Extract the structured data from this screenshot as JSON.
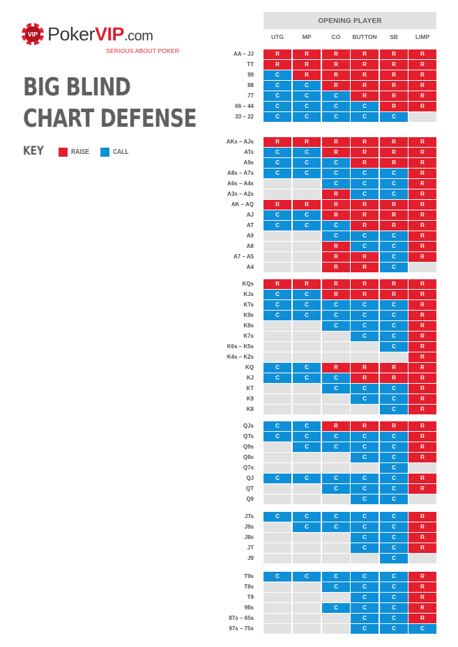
{
  "logo": {
    "word_poker": "Poker",
    "word_vip": "VIP",
    "word_com": ".com",
    "chip_text": "VIP",
    "tagline": "SERIOUS ABOUT POKER"
  },
  "title": {
    "line1": "BIG BLIND",
    "line2": "CHART DEFENSE"
  },
  "key": {
    "label": "KEY",
    "raise_label": "RAISE",
    "call_label": "CALL",
    "raise_color": "#e31e2d",
    "call_color": "#0f8fd8",
    "empty_color": "#e2e2e3"
  },
  "chart": {
    "header": "OPENING PLAYER",
    "columns": [
      "UTG",
      "MP",
      "CO",
      "BUTTON",
      "SB",
      "LIMP"
    ],
    "groups": [
      {
        "rows": [
          {
            "label": "AA – JJ",
            "cells": [
              "R",
              "R",
              "R",
              "R",
              "R",
              "R"
            ]
          },
          {
            "label": "TT",
            "cells": [
              "R",
              "R",
              "R",
              "R",
              "R",
              "R"
            ]
          },
          {
            "label": "99",
            "cells": [
              "C",
              "R",
              "R",
              "R",
              "R",
              "R"
            ]
          },
          {
            "label": "88",
            "cells": [
              "C",
              "C",
              "R",
              "R",
              "R",
              "R"
            ]
          },
          {
            "label": "77",
            "cells": [
              "C",
              "C",
              "C",
              "R",
              "R",
              "R"
            ]
          },
          {
            "label": "66 – 44",
            "cells": [
              "C",
              "C",
              "C",
              "C",
              "R",
              "R"
            ]
          },
          {
            "label": "33 – 22",
            "cells": [
              "C",
              "C",
              "C",
              "C",
              "C",
              ""
            ]
          }
        ]
      },
      {
        "rows": [
          {
            "label": "AKs – AJs",
            "cells": [
              "R",
              "R",
              "R",
              "R",
              "R",
              "R"
            ]
          },
          {
            "label": "ATs",
            "cells": [
              "C",
              "C",
              "R",
              "R",
              "R",
              "R"
            ]
          },
          {
            "label": "A9s",
            "cells": [
              "C",
              "C",
              "C",
              "R",
              "R",
              "R"
            ]
          },
          {
            "label": "A8s – A7s",
            "cells": [
              "C",
              "C",
              "C",
              "C",
              "C",
              "R"
            ]
          },
          {
            "label": "A6s – A4s",
            "cells": [
              "",
              "",
              "C",
              "C",
              "C",
              "R"
            ]
          },
          {
            "label": "A3s – A2s",
            "cells": [
              "",
              "",
              "R",
              "C",
              "C",
              "R"
            ]
          },
          {
            "label": "AK – AQ",
            "cells": [
              "R",
              "R",
              "R",
              "R",
              "R",
              "R"
            ]
          },
          {
            "label": "AJ",
            "cells": [
              "C",
              "C",
              "R",
              "R",
              "R",
              "R"
            ]
          },
          {
            "label": "AT",
            "cells": [
              "C",
              "C",
              "C",
              "R",
              "R",
              "R"
            ]
          },
          {
            "label": "A9",
            "cells": [
              "",
              "",
              "C",
              "C",
              "C",
              "R"
            ]
          },
          {
            "label": "A8",
            "cells": [
              "",
              "",
              "R",
              "C",
              "C",
              "R"
            ]
          },
          {
            "label": "A7 – A5",
            "cells": [
              "",
              "",
              "R",
              "R",
              "C",
              "R"
            ]
          },
          {
            "label": "A4",
            "cells": [
              "",
              "",
              "R",
              "R",
              "C",
              ""
            ]
          }
        ]
      },
      {
        "rows": [
          {
            "label": "KQs",
            "cells": [
              "R",
              "R",
              "R",
              "R",
              "R",
              "R"
            ]
          },
          {
            "label": "KJs",
            "cells": [
              "C",
              "C",
              "R",
              "R",
              "R",
              "R"
            ]
          },
          {
            "label": "KTs",
            "cells": [
              "C",
              "C",
              "C",
              "C",
              "C",
              "R"
            ]
          },
          {
            "label": "K9s",
            "cells": [
              "C",
              "C",
              "C",
              "C",
              "C",
              "R"
            ]
          },
          {
            "label": "K8s",
            "cells": [
              "",
              "",
              "C",
              "C",
              "C",
              "R"
            ]
          },
          {
            "label": "K7s",
            "cells": [
              "",
              "",
              "",
              "C",
              "C",
              "R"
            ]
          },
          {
            "label": "K6s – K5s",
            "cells": [
              "",
              "",
              "",
              "",
              "C",
              "R"
            ]
          },
          {
            "label": "K4s – K2s",
            "cells": [
              "",
              "",
              "",
              "",
              "",
              "R"
            ]
          },
          {
            "label": "KQ",
            "cells": [
              "C",
              "C",
              "R",
              "R",
              "R",
              "R"
            ]
          },
          {
            "label": "KJ",
            "cells": [
              "C",
              "C",
              "C",
              "R",
              "R",
              "R"
            ]
          },
          {
            "label": "KT",
            "cells": [
              "",
              "",
              "C",
              "C",
              "C",
              "R"
            ]
          },
          {
            "label": "K9",
            "cells": [
              "",
              "",
              "",
              "C",
              "C",
              "R"
            ]
          },
          {
            "label": "K8",
            "cells": [
              "",
              "",
              "",
              "",
              "C",
              "R"
            ]
          }
        ]
      },
      {
        "rows": [
          {
            "label": "QJs",
            "cells": [
              "C",
              "C",
              "R",
              "R",
              "R",
              "R"
            ]
          },
          {
            "label": "QTs",
            "cells": [
              "C",
              "C",
              "C",
              "C",
              "C",
              "R"
            ]
          },
          {
            "label": "Q9s",
            "cells": [
              "",
              "C",
              "C",
              "C",
              "C",
              "R"
            ]
          },
          {
            "label": "Q8s",
            "cells": [
              "",
              "",
              "",
              "C",
              "C",
              "R"
            ]
          },
          {
            "label": "Q7s",
            "cells": [
              "",
              "",
              "",
              "",
              "C",
              ""
            ]
          },
          {
            "label": "QJ",
            "cells": [
              "C",
              "C",
              "C",
              "C",
              "C",
              "R"
            ]
          },
          {
            "label": "QT",
            "cells": [
              "",
              "",
              "C",
              "C",
              "C",
              "R"
            ]
          },
          {
            "label": "Q9",
            "cells": [
              "",
              "",
              "",
              "C",
              "C",
              ""
            ]
          }
        ]
      },
      {
        "rows": [
          {
            "label": "JTs",
            "cells": [
              "C",
              "C",
              "C",
              "C",
              "C",
              "R"
            ]
          },
          {
            "label": "J9s",
            "cells": [
              "",
              "C",
              "C",
              "C",
              "C",
              "R"
            ]
          },
          {
            "label": "J8s",
            "cells": [
              "",
              "",
              "",
              "C",
              "C",
              "R"
            ]
          },
          {
            "label": "JT",
            "cells": [
              "",
              "",
              "",
              "C",
              "C",
              "R"
            ]
          },
          {
            "label": "J9",
            "cells": [
              "",
              "",
              "",
              "",
              "C",
              ""
            ]
          }
        ]
      },
      {
        "rows": [
          {
            "label": "T9s",
            "cells": [
              "C",
              "C",
              "C",
              "C",
              "C",
              "R"
            ]
          },
          {
            "label": "T8s",
            "cells": [
              "",
              "",
              "C",
              "C",
              "C",
              "R"
            ]
          },
          {
            "label": "T9",
            "cells": [
              "",
              "",
              "",
              "C",
              "C",
              "R"
            ]
          },
          {
            "label": "98s",
            "cells": [
              "",
              "",
              "C",
              "C",
              "C",
              "R"
            ]
          },
          {
            "label": "87s – 65s",
            "cells": [
              "",
              "",
              "",
              "C",
              "C",
              "R"
            ]
          },
          {
            "label": "97s – 75s",
            "cells": [
              "",
              "",
              "",
              "C",
              "C",
              "C"
            ]
          }
        ]
      }
    ]
  }
}
